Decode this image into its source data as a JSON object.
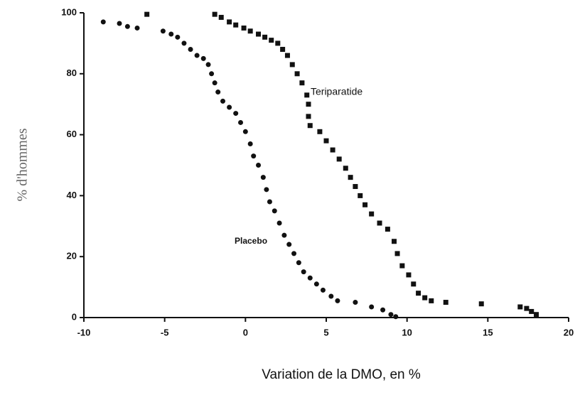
{
  "chart_data": {
    "type": "scatter",
    "xlabel": "Variation de la DMO, en %",
    "ylabel": "% d'hommes",
    "annotations": [
      "Teriparatide",
      "Placebo"
    ],
    "xlim": [
      -10,
      20
    ],
    "xticks": [
      -10,
      -5,
      0,
      5,
      10,
      15,
      20
    ],
    "ylim": [
      0,
      100
    ],
    "yticks": [
      0,
      20,
      40,
      60,
      80,
      100
    ],
    "series": [
      {
        "name": "Placebo",
        "color": "#111111",
        "marker": "circle",
        "x": [
          -8.8,
          -7.8,
          -7.3,
          -6.7,
          -5.1,
          -4.6,
          -4.2,
          -3.8,
          -3.4,
          -3,
          -2.6,
          -2.3,
          -2.1,
          -1.9,
          -1.7,
          -1.4,
          -1,
          -0.6,
          -0.3,
          0,
          0.3,
          0.5,
          0.8,
          1.1,
          1.3,
          1.5,
          1.8,
          2.1,
          2.4,
          2.7,
          3,
          3.3,
          3.6,
          4,
          4.4,
          4.8,
          5.3,
          5.7,
          6.8,
          7.8,
          8.5,
          9,
          9.3
        ],
        "values": [
          97,
          96.5,
          95.5,
          95,
          94,
          93,
          92,
          90,
          88,
          86,
          85,
          83,
          80,
          77,
          74,
          71,
          69,
          67,
          64,
          61,
          57,
          53,
          50,
          46,
          42,
          38,
          35,
          31,
          27,
          24,
          21,
          18,
          15,
          13,
          11,
          9,
          7,
          5.5,
          5,
          3.5,
          2.5,
          1,
          0.3
        ]
      },
      {
        "name": "Teriparatide",
        "color": "#111111",
        "marker": "square",
        "x": [
          -6.1,
          -1.9,
          -1.5,
          -1,
          -0.6,
          -0.1,
          0.3,
          0.8,
          1.2,
          1.6,
          2,
          2.3,
          2.6,
          2.9,
          3.2,
          3.5,
          3.8,
          3.9,
          3.9,
          4,
          4.6,
          5,
          5.4,
          5.8,
          6.2,
          6.5,
          6.8,
          7.1,
          7.4,
          7.8,
          8.3,
          8.8,
          9.2,
          9.4,
          9.7,
          10.1,
          10.4,
          10.7,
          11.1,
          11.5,
          12.4,
          14.6,
          17,
          17.4,
          17.7,
          18
        ],
        "values": [
          99.5,
          99.5,
          98.5,
          97,
          96,
          95,
          94,
          93,
          92,
          91,
          90,
          88,
          86,
          83,
          80,
          77,
          73,
          70,
          66,
          63,
          61,
          58,
          55,
          52,
          49,
          46,
          43,
          40,
          37,
          34,
          31,
          29,
          25,
          21,
          17,
          14,
          11,
          8,
          6.5,
          5.5,
          5,
          4.5,
          3.5,
          3,
          2,
          1
        ]
      }
    ]
  }
}
